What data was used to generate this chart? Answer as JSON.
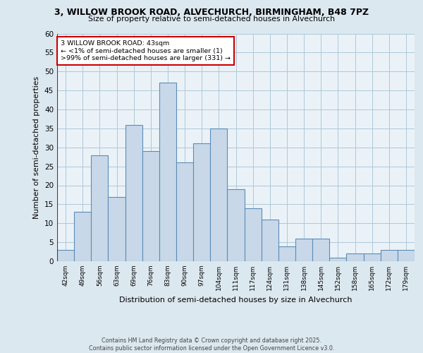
{
  "title_line1": "3, WILLOW BROOK ROAD, ALVECHURCH, BIRMINGHAM, B48 7PZ",
  "title_line2": "Size of property relative to semi-detached houses in Alvechurch",
  "xlabel": "Distribution of semi-detached houses by size in Alvechurch",
  "ylabel": "Number of semi-detached properties",
  "footer": "Contains HM Land Registry data © Crown copyright and database right 2025.\nContains public sector information licensed under the Open Government Licence v3.0.",
  "bin_labels": [
    "42sqm",
    "49sqm",
    "56sqm",
    "63sqm",
    "69sqm",
    "76sqm",
    "83sqm",
    "90sqm",
    "97sqm",
    "104sqm",
    "111sqm",
    "117sqm",
    "124sqm",
    "131sqm",
    "138sqm",
    "145sqm",
    "152sqm",
    "158sqm",
    "165sqm",
    "172sqm",
    "179sqm"
  ],
  "bar_heights": [
    3,
    13,
    28,
    17,
    36,
    29,
    47,
    26,
    31,
    35,
    19,
    14,
    11,
    4,
    6,
    6,
    1,
    2,
    2,
    3,
    3
  ],
  "bar_color": "#c8d8e8",
  "bar_edge_color": "#5b8db8",
  "highlight_color": "#cc0000",
  "annotation_text": "3 WILLOW BROOK ROAD: 43sqm\n← <1% of semi-detached houses are smaller (1)\n>99% of semi-detached houses are larger (331) →",
  "annotation_box_color": "#ffffff",
  "annotation_box_edge_color": "#cc0000",
  "ylim": [
    0,
    60
  ],
  "yticks": [
    0,
    5,
    10,
    15,
    20,
    25,
    30,
    35,
    40,
    45,
    50,
    55,
    60
  ],
  "grid_color": "#aec8d8",
  "background_color": "#dce8f0",
  "plot_bg_color": "#eaf2f8"
}
